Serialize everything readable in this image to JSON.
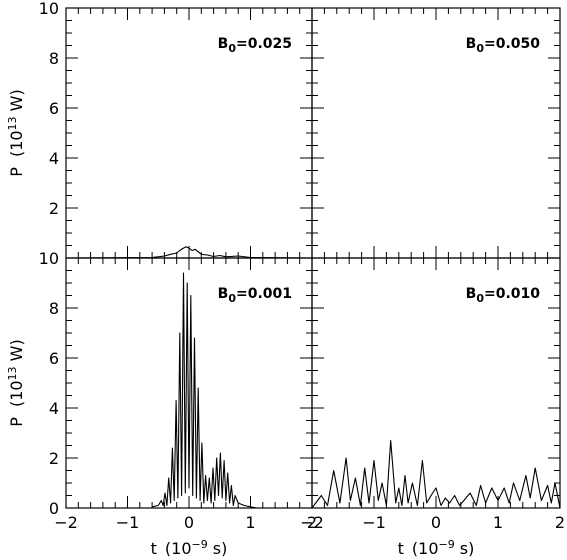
{
  "chart_data": [
    {
      "type": "line",
      "label_main": "B",
      "label_sub": "0",
      "label_tail": "=0.025",
      "ylabel_main": "P",
      "ylabel_unit_pre": "(10",
      "ylabel_unit_exp": "13",
      "ylabel_unit_post": " W)",
      "xlabel": "",
      "xlim": [
        -2,
        2
      ],
      "ylim": [
        0,
        10
      ],
      "xticks": [],
      "yticks": [
        "2",
        "4",
        "6",
        "8",
        "10"
      ],
      "x": [
        -2.0,
        -0.6,
        -0.4,
        -0.3,
        -0.2,
        -0.15,
        -0.1,
        -0.05,
        0.0,
        0.05,
        0.1,
        0.15,
        0.2,
        0.3,
        0.4,
        0.5,
        0.6,
        0.8,
        1.0,
        2.0
      ],
      "y": [
        0.0,
        0.02,
        0.08,
        0.15,
        0.2,
        0.3,
        0.38,
        0.45,
        0.4,
        0.3,
        0.35,
        0.25,
        0.15,
        0.12,
        0.06,
        0.1,
        0.05,
        0.08,
        0.02,
        0.0
      ]
    },
    {
      "type": "line",
      "label_main": "B",
      "label_sub": "0",
      "label_tail": "=0.050",
      "ylabel_main": "",
      "ylabel_unit_pre": "",
      "ylabel_unit_exp": "",
      "ylabel_unit_post": "",
      "xlabel": "",
      "xlim": [
        -2,
        2
      ],
      "ylim": [
        0,
        10
      ],
      "xticks": [],
      "yticks": [],
      "x": [
        -2.0,
        2.0
      ],
      "y": [
        0.0,
        0.0
      ]
    },
    {
      "type": "line",
      "label_main": "B",
      "label_sub": "0",
      "label_tail": "=0.001",
      "ylabel_main": "P",
      "ylabel_unit_pre": "(10",
      "ylabel_unit_exp": "13",
      "ylabel_unit_post": " W)",
      "xlabel_main": "t",
      "xlabel_unit_pre": "(10",
      "xlabel_unit_exp": "−9",
      "xlabel_unit_post": " s)",
      "xlim": [
        -2,
        2
      ],
      "ylim": [
        0,
        10
      ],
      "xticks": [
        "−2",
        "−1",
        "0",
        "1",
        "2"
      ],
      "yticks": [
        "0",
        "2",
        "4",
        "6",
        "8",
        "10"
      ],
      "x": [
        -0.6,
        -0.5,
        -0.45,
        -0.42,
        -0.39,
        -0.36,
        -0.33,
        -0.3,
        -0.27,
        -0.24,
        -0.21,
        -0.18,
        -0.15,
        -0.12,
        -0.09,
        -0.06,
        -0.03,
        0.0,
        0.03,
        0.06,
        0.09,
        0.12,
        0.15,
        0.18,
        0.21,
        0.24,
        0.27,
        0.3,
        0.33,
        0.36,
        0.39,
        0.42,
        0.45,
        0.48,
        0.51,
        0.54,
        0.57,
        0.6,
        0.63,
        0.66,
        0.69,
        0.72,
        0.75,
        0.8,
        0.9,
        1.0,
        1.1
      ],
      "y": [
        0.05,
        0.1,
        0.3,
        0.1,
        0.6,
        0.1,
        1.2,
        0.2,
        2.4,
        0.3,
        4.3,
        0.4,
        7.0,
        0.5,
        9.4,
        0.6,
        9.0,
        0.8,
        8.5,
        0.5,
        6.8,
        0.4,
        4.8,
        0.3,
        2.6,
        0.2,
        1.3,
        0.3,
        1.2,
        0.2,
        1.6,
        0.3,
        2.0,
        0.5,
        2.2,
        0.4,
        1.9,
        0.3,
        1.4,
        0.2,
        0.9,
        0.1,
        0.5,
        0.2,
        0.1,
        0.05,
        0.0
      ]
    },
    {
      "type": "line",
      "label_main": "B",
      "label_sub": "0",
      "label_tail": "=0.010",
      "ylabel_main": "",
      "ylabel_unit_pre": "",
      "ylabel_unit_exp": "",
      "ylabel_unit_post": "",
      "xlabel_main": "t",
      "xlabel_unit_pre": "(10",
      "xlabel_unit_exp": "−9",
      "xlabel_unit_post": " s)",
      "xlim": [
        -2,
        2
      ],
      "ylim": [
        0,
        10
      ],
      "xticks": [
        "−2",
        "−1",
        "0",
        "1",
        "2"
      ],
      "yticks": [],
      "x": [
        -2.0,
        -1.85,
        -1.75,
        -1.65,
        -1.55,
        -1.45,
        -1.38,
        -1.3,
        -1.22,
        -1.15,
        -1.08,
        -1.0,
        -0.93,
        -0.87,
        -0.8,
        -0.73,
        -0.65,
        -0.6,
        -0.55,
        -0.5,
        -0.45,
        -0.38,
        -0.3,
        -0.22,
        -0.15,
        -0.08,
        0.0,
        0.08,
        0.15,
        0.22,
        0.3,
        0.38,
        0.45,
        0.55,
        0.65,
        0.72,
        0.8,
        0.9,
        1.0,
        1.1,
        1.18,
        1.25,
        1.35,
        1.45,
        1.52,
        1.6,
        1.7,
        1.8,
        1.86,
        1.92,
        2.0
      ],
      "y": [
        0.0,
        0.5,
        0.1,
        1.5,
        0.2,
        2.0,
        0.3,
        1.2,
        0.1,
        1.6,
        0.2,
        1.9,
        0.3,
        1.0,
        0.1,
        2.7,
        0.2,
        0.8,
        0.1,
        1.3,
        0.2,
        1.0,
        0.1,
        1.9,
        0.2,
        0.5,
        0.8,
        0.1,
        0.4,
        0.2,
        0.5,
        0.1,
        0.3,
        0.6,
        0.1,
        0.9,
        0.2,
        0.8,
        0.3,
        0.8,
        0.2,
        1.0,
        0.3,
        1.3,
        0.4,
        1.6,
        0.3,
        0.9,
        0.2,
        1.0,
        0.0
      ]
    }
  ]
}
